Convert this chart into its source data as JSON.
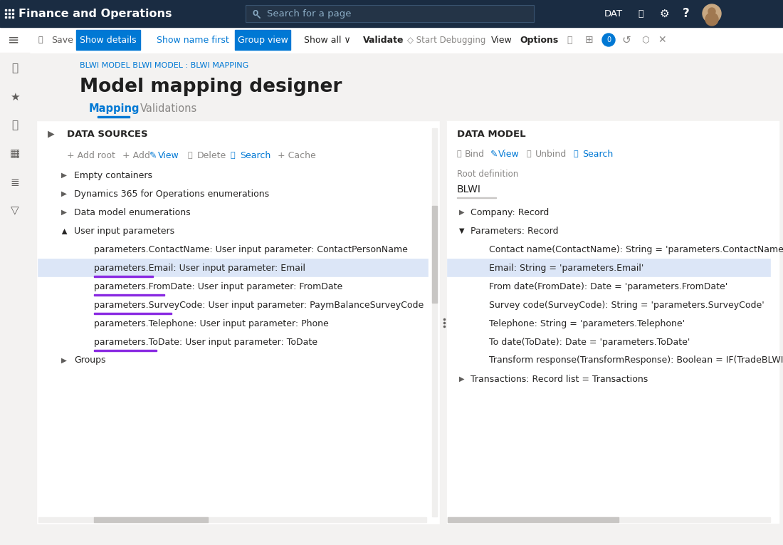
{
  "bg_color": "#ffffff",
  "top_bar_color": "#1a2c42",
  "content_bg": "#f3f2f1",
  "panel_bg": "#ffffff",
  "title_text": "Model mapping designer",
  "breadcrumb": "BLWI MODEL BLWI MODEL : BLWI MAPPING",
  "app_title": "Finance and Operations",
  "search_placeholder": "Search for a page",
  "tab_mapping": "Mapping",
  "tab_validations": "Validations",
  "data_sources_header": "DATA SOURCES",
  "data_model_header": "DATA MODEL",
  "root_definition_label": "Root definition",
  "root_definition_value": "BLWI",
  "tree_items": [
    {
      "level": 1,
      "text": "Empty containers",
      "expanded": false,
      "selected": false,
      "underlined": false
    },
    {
      "level": 1,
      "text": "Dynamics 365 for Operations enumerations",
      "expanded": false,
      "selected": false,
      "underlined": false
    },
    {
      "level": 1,
      "text": "Data model enumerations",
      "expanded": false,
      "selected": false,
      "underlined": false
    },
    {
      "level": 1,
      "text": "User input parameters",
      "expanded": true,
      "selected": false,
      "underlined": false
    },
    {
      "level": 2,
      "text": "parameters.ContactName: User input parameter: ContactPersonName",
      "selected": false,
      "underlined": false
    },
    {
      "level": 2,
      "text": "parameters.Email: User input parameter: Email",
      "selected": true,
      "underlined": true
    },
    {
      "level": 2,
      "text": "parameters.FromDate: User input parameter: FromDate",
      "selected": false,
      "underlined": true
    },
    {
      "level": 2,
      "text": "parameters.SurveyCode: User input parameter: PaymBalanceSurveyCode",
      "selected": false,
      "underlined": true
    },
    {
      "level": 2,
      "text": "parameters.Telephone: User input parameter: Phone",
      "selected": false,
      "underlined": false
    },
    {
      "level": 2,
      "text": "parameters.ToDate: User input parameter: ToDate",
      "selected": false,
      "underlined": true
    },
    {
      "level": 1,
      "text": "Groups",
      "expanded": false,
      "selected": false,
      "underlined": false
    }
  ],
  "data_model_items": [
    {
      "level": 1,
      "text": "Company: Record",
      "expanded": false,
      "selected": false
    },
    {
      "level": 1,
      "text": "Parameters: Record",
      "expanded": true,
      "selected": false
    },
    {
      "level": 2,
      "text": "Contact name(ContactName): String = 'parameters.ContactName'",
      "selected": false
    },
    {
      "level": 2,
      "text": "Email: String = 'parameters.Email'",
      "selected": true
    },
    {
      "level": 2,
      "text": "From date(FromDate): Date = 'parameters.FromDate'",
      "selected": false
    },
    {
      "level": 2,
      "text": "Survey code(SurveyCode): String = 'parameters.SurveyCode'",
      "selected": false
    },
    {
      "level": 2,
      "text": "Telephone: String = 'parameters.Telephone'",
      "selected": false
    },
    {
      "level": 2,
      "text": "To date(ToDate): Date = 'parameters.ToDate'",
      "selected": false
    },
    {
      "level": 2,
      "text": "Transform response(TransformResponse): Boolean = IF(TradeBLWIParameters",
      "selected": false
    },
    {
      "level": 1,
      "text": "Transactions: Record list = Transactions",
      "expanded": false,
      "selected": false
    }
  ],
  "selected_bg": "#dce6f7",
  "selected_border": "#4a7fc1",
  "underline_color": "#8a2be2",
  "active_tab_color": "#0078d4",
  "button_blue_bg": "#0078d4",
  "button_outline_text": "#0078d4",
  "header_text_color": "#1f1f1f",
  "body_text_color": "#252423",
  "gray_text": "#8a8886",
  "mid_gray": "#605e5c",
  "border_color": "#edebe9",
  "separator_color": "#c8c6c4",
  "top_bar_text": "#ffffff",
  "scrollbar_color": "#c8c6c4",
  "breadcrumb_color": "#0078d4",
  "left_nav_bg": "#f3f2f1",
  "toolbar_bg": "#ffffff",
  "ds_toolbar_color": "#8a8886"
}
